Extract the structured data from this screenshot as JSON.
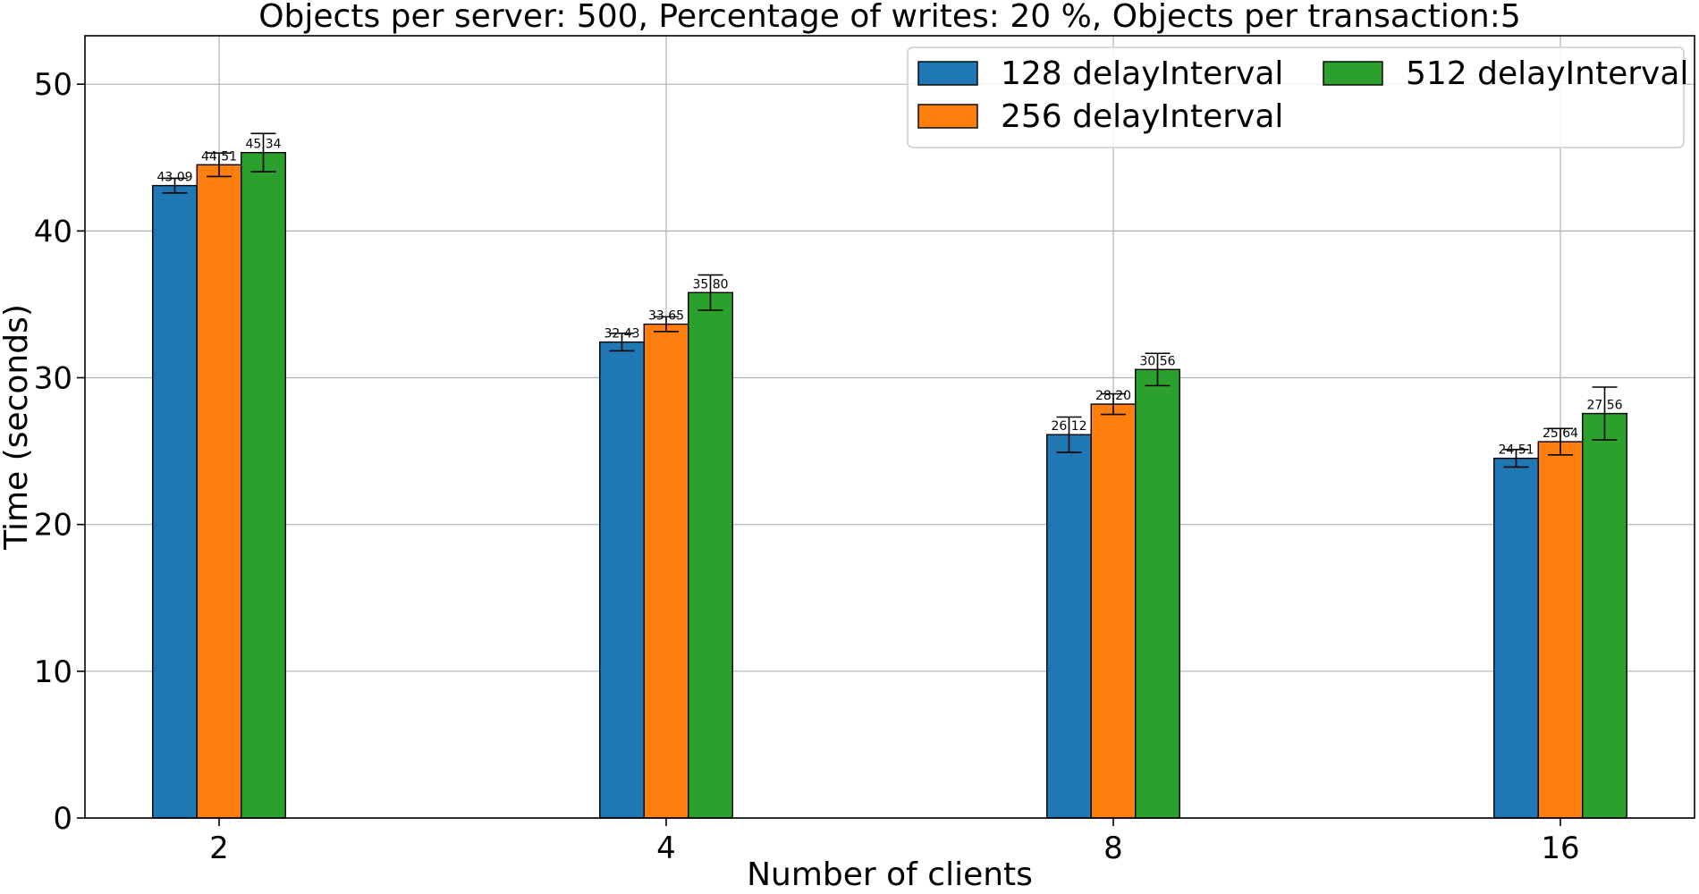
{
  "chart_data": {
    "type": "bar",
    "title": "Objects per server: 500, Percentage of writes: 20 %, Objects per transaction:5",
    "xlabel": "Number of clients",
    "ylabel": "Time (seconds)",
    "categories": [
      "2",
      "4",
      "8",
      "16"
    ],
    "ylim": [
      0,
      53.3
    ],
    "yticks": [
      0,
      10,
      20,
      30,
      40,
      50
    ],
    "grid": true,
    "legend_position": "top-right",
    "series": [
      {
        "name": "128 delayInterval",
        "color": "#1f77b4",
        "values": [
          43.09,
          32.43,
          26.12,
          24.51
        ],
        "value_labels": [
          "43.09",
          "32.43",
          "26.12",
          "24.51"
        ],
        "error": [
          0.5,
          0.6,
          1.2,
          0.6
        ]
      },
      {
        "name": "256 delayInterval",
        "color": "#ff7f0e",
        "values": [
          44.51,
          33.65,
          28.2,
          25.64
        ],
        "value_labels": [
          "44.51",
          "33.65",
          "28.20",
          "25.64"
        ],
        "error": [
          0.8,
          0.5,
          0.7,
          0.9
        ]
      },
      {
        "name": "512 delayInterval",
        "color": "#2ca02c",
        "values": [
          45.34,
          35.8,
          30.56,
          27.56
        ],
        "value_labels": [
          "45.34",
          "35.80",
          "30.56",
          "27.56"
        ],
        "error": [
          1.3,
          1.2,
          1.1,
          1.8
        ]
      }
    ]
  }
}
